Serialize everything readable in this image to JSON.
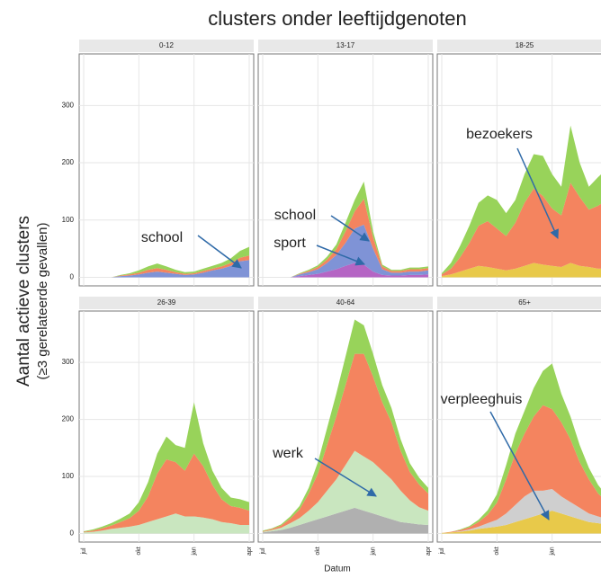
{
  "title": "clusters onder leeftijdgenoten",
  "y_label": "Aantal actieve clusters",
  "y_sublabel": "(≥3 gerelateerde gevallen)",
  "x_label": "Datum",
  "chart_data": [
    {
      "type": "area",
      "stacked": true,
      "title": "0-12",
      "categories": [
        "jul",
        null,
        null,
        null,
        null,
        null,
        "okt",
        null,
        null,
        null,
        null,
        null,
        "jan",
        null,
        null,
        null,
        null,
        null,
        "apr"
      ],
      "ylim": [
        -15,
        390
      ],
      "yticks": [
        0,
        100,
        200,
        300
      ],
      "grid": true,
      "series": [
        {
          "color": "#7f93d6",
          "values": [
            0,
            0,
            0,
            0,
            2,
            3,
            5,
            8,
            10,
            8,
            6,
            4,
            5,
            8,
            12,
            15,
            20,
            28,
            30
          ]
        },
        {
          "color": "#f4845f",
          "values": [
            0,
            0,
            0,
            0,
            1,
            2,
            3,
            5,
            6,
            5,
            3,
            2,
            2,
            3,
            3,
            4,
            5,
            6,
            8
          ]
        },
        {
          "color": "#98d35a",
          "values": [
            0,
            0,
            0,
            0,
            1,
            2,
            4,
            6,
            8,
            6,
            4,
            3,
            3,
            4,
            5,
            6,
            8,
            12,
            15
          ]
        }
      ],
      "annotations": [
        {
          "text": "school"
        }
      ]
    },
    {
      "type": "area",
      "stacked": true,
      "title": "13-17",
      "categories": [
        "jul",
        null,
        null,
        null,
        null,
        null,
        "okt",
        null,
        null,
        null,
        null,
        null,
        "jan",
        null,
        null,
        null,
        null,
        null,
        "apr"
      ],
      "ylim": [
        -15,
        390
      ],
      "yticks": [
        0,
        100,
        200,
        300
      ],
      "grid": true,
      "series": [
        {
          "color": "#b565c4",
          "values": [
            0,
            0,
            0,
            0,
            2,
            4,
            6,
            10,
            14,
            20,
            25,
            22,
            10,
            4,
            3,
            3,
            4,
            4,
            5
          ]
        },
        {
          "color": "#7f93d6",
          "values": [
            0,
            0,
            0,
            0,
            3,
            5,
            8,
            15,
            25,
            40,
            60,
            70,
            40,
            10,
            5,
            5,
            6,
            6,
            7
          ]
        },
        {
          "color": "#f4845f",
          "values": [
            0,
            0,
            0,
            0,
            1,
            2,
            4,
            6,
            10,
            20,
            30,
            45,
            20,
            5,
            3,
            3,
            4,
            4,
            4
          ]
        },
        {
          "color": "#98d35a",
          "values": [
            0,
            0,
            0,
            0,
            1,
            2,
            3,
            5,
            8,
            15,
            20,
            30,
            10,
            3,
            2,
            2,
            3,
            3,
            3
          ]
        }
      ],
      "annotations": [
        {
          "text": "school"
        },
        {
          "text": "sport"
        }
      ]
    },
    {
      "type": "area",
      "stacked": true,
      "title": "18-25",
      "categories": [
        "jul",
        null,
        null,
        null,
        null,
        null,
        "okt",
        null,
        null,
        null,
        null,
        null,
        "jan",
        null,
        null,
        null,
        null,
        null,
        "apr"
      ],
      "ylim": [
        -15,
        390
      ],
      "yticks": [
        0,
        100,
        200,
        300
      ],
      "grid": true,
      "series": [
        {
          "color": "#e8c94a",
          "values": [
            2,
            5,
            10,
            15,
            20,
            18,
            15,
            12,
            15,
            20,
            25,
            22,
            20,
            18,
            25,
            20,
            18,
            15,
            15
          ]
        },
        {
          "color": "#f4845f",
          "values": [
            3,
            10,
            25,
            45,
            70,
            80,
            70,
            60,
            80,
            110,
            130,
            120,
            100,
            90,
            140,
            120,
            100,
            110,
            120
          ]
        },
        {
          "color": "#98d35a",
          "values": [
            2,
            10,
            20,
            30,
            40,
            45,
            50,
            40,
            40,
            50,
            60,
            70,
            60,
            50,
            100,
            60,
            40,
            50,
            55
          ]
        }
      ],
      "annotations": [
        {
          "text": "bezoekers"
        }
      ]
    },
    {
      "type": "area",
      "stacked": true,
      "title": "26-39",
      "categories": [
        "jul",
        null,
        null,
        null,
        null,
        null,
        "okt",
        null,
        null,
        null,
        null,
        null,
        "jan",
        null,
        null,
        null,
        null,
        null,
        "apr"
      ],
      "ylim": [
        -15,
        390
      ],
      "yticks": [
        0,
        100,
        200,
        300
      ],
      "grid": true,
      "series": [
        {
          "color": "#c9e6bf",
          "values": [
            2,
            3,
            5,
            8,
            10,
            12,
            15,
            20,
            25,
            30,
            35,
            30,
            30,
            28,
            25,
            20,
            18,
            15,
            15
          ]
        },
        {
          "color": "#f4845f",
          "values": [
            1,
            2,
            4,
            6,
            10,
            15,
            25,
            45,
            80,
            100,
            90,
            80,
            110,
            90,
            60,
            40,
            30,
            30,
            25
          ]
        },
        {
          "color": "#98d35a",
          "values": [
            1,
            2,
            3,
            4,
            6,
            8,
            15,
            25,
            35,
            40,
            30,
            40,
            90,
            40,
            25,
            20,
            15,
            15,
            15
          ]
        }
      ],
      "annotations": []
    },
    {
      "type": "area",
      "stacked": true,
      "title": "40-64",
      "categories": [
        "jul",
        null,
        null,
        null,
        null,
        null,
        "okt",
        null,
        null,
        null,
        null,
        null,
        "jan",
        null,
        null,
        null,
        null,
        null,
        "apr"
      ],
      "ylim": [
        -15,
        390
      ],
      "yticks": [
        0,
        100,
        200,
        300
      ],
      "grid": true,
      "series": [
        {
          "color": "#b0b0b0",
          "values": [
            2,
            4,
            6,
            10,
            15,
            20,
            25,
            30,
            35,
            40,
            45,
            40,
            35,
            30,
            25,
            20,
            18,
            16,
            15
          ]
        },
        {
          "color": "#c9e6bf",
          "values": [
            1,
            2,
            4,
            8,
            12,
            20,
            30,
            45,
            60,
            80,
            100,
            95,
            90,
            80,
            70,
            55,
            40,
            30,
            25
          ]
        },
        {
          "color": "#f4845f",
          "values": [
            1,
            2,
            4,
            8,
            15,
            30,
            50,
            80,
            110,
            140,
            170,
            180,
            150,
            120,
            100,
            70,
            50,
            40,
            30
          ]
        },
        {
          "color": "#98d35a",
          "values": [
            1,
            1,
            2,
            4,
            6,
            10,
            20,
            30,
            40,
            50,
            60,
            50,
            40,
            30,
            25,
            20,
            15,
            12,
            10
          ]
        }
      ],
      "annotations": [
        {
          "text": "werk"
        }
      ]
    },
    {
      "type": "area",
      "stacked": true,
      "title": "65+",
      "categories": [
        "jul",
        null,
        null,
        null,
        null,
        null,
        "okt",
        null,
        null,
        null,
        null,
        null,
        "jan",
        null,
        null,
        null,
        null,
        null,
        "apr"
      ],
      "ylim": [
        -15,
        390
      ],
      "yticks": [
        0,
        100,
        200,
        300
      ],
      "grid": true,
      "series": [
        {
          "color": "#e8c94a",
          "values": [
            1,
            2,
            3,
            5,
            8,
            10,
            12,
            15,
            20,
            25,
            30,
            35,
            40,
            35,
            30,
            25,
            20,
            18,
            15
          ]
        },
        {
          "color": "#cfcfcf",
          "values": [
            0,
            0,
            1,
            2,
            4,
            8,
            12,
            20,
            30,
            40,
            45,
            40,
            38,
            30,
            25,
            20,
            15,
            12,
            10
          ]
        },
        {
          "color": "#f4845f",
          "values": [
            0,
            1,
            2,
            4,
            8,
            15,
            30,
            60,
            90,
            110,
            130,
            150,
            140,
            130,
            110,
            80,
            60,
            40,
            30
          ]
        },
        {
          "color": "#98d35a",
          "values": [
            0,
            0,
            1,
            2,
            4,
            8,
            15,
            25,
            35,
            40,
            50,
            60,
            80,
            50,
            40,
            30,
            20,
            15,
            10
          ]
        }
      ],
      "annotations": [
        {
          "text": "verpleeghuis"
        }
      ]
    }
  ]
}
